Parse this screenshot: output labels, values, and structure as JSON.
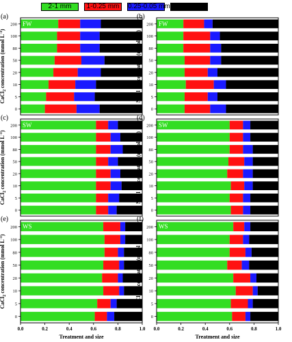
{
  "legend": [
    {
      "label": "2-1 mm",
      "color": "#33dd22"
    },
    {
      "label": "1-0.25 mm",
      "color": "#ff1111"
    },
    {
      "label": "0.25-0.05 mm",
      "color": "#1a1aff"
    },
    {
      "label": "<0.05 mm",
      "color": "#000000"
    }
  ],
  "chart_data": [
    {
      "type": "bar",
      "stacked": true,
      "orientation": "horizontal",
      "panel_label": "(a)",
      "tag": "FW",
      "ylabel_parts": [
        "CaCl",
        "2",
        " concentration (mmol L",
        "-1",
        ")"
      ],
      "xlabel": "",
      "xlim": [
        0,
        1.0
      ],
      "categories": [
        "0",
        "5",
        "10",
        "20",
        "50",
        "80",
        "100",
        "200"
      ],
      "series": [
        {
          "name": "2-1 mm",
          "values": [
            0.2,
            0.21,
            0.23,
            0.27,
            0.28,
            0.3,
            0.3,
            0.31
          ]
        },
        {
          "name": "1-0.25 mm",
          "values": [
            0.26,
            0.23,
            0.22,
            0.2,
            0.22,
            0.19,
            0.19,
            0.18
          ]
        },
        {
          "name": "0.25-0.05 mm",
          "values": [
            0.19,
            0.17,
            0.17,
            0.19,
            0.19,
            0.16,
            0.16,
            0.17
          ]
        },
        {
          "name": "<0.05 mm",
          "values": [
            0.35,
            0.39,
            0.38,
            0.34,
            0.31,
            0.35,
            0.35,
            0.34
          ]
        }
      ]
    },
    {
      "type": "bar",
      "stacked": true,
      "orientation": "horizontal",
      "panel_label": "(b)",
      "tag": "FW",
      "ylabel_parts": [
        "NaCl concentration (mmol L",
        "-1",
        ")"
      ],
      "xlabel": "",
      "xlim": [
        0,
        1.0
      ],
      "categories": [
        "0",
        "5",
        "10",
        "20",
        "50",
        "80",
        "100",
        "200"
      ],
      "series": [
        {
          "name": "2-1 mm",
          "values": [
            0.23,
            0.23,
            0.24,
            0.23,
            0.23,
            0.22,
            0.22,
            0.22
          ]
        },
        {
          "name": "1-0.25 mm",
          "values": [
            0.21,
            0.19,
            0.23,
            0.19,
            0.21,
            0.22,
            0.22,
            0.17
          ]
        },
        {
          "name": "0.25-0.05 mm",
          "values": [
            0.13,
            0.08,
            0.1,
            0.08,
            0.09,
            0.09,
            0.08,
            0.07
          ]
        },
        {
          "name": "<0.05 mm",
          "values": [
            0.43,
            0.5,
            0.43,
            0.5,
            0.47,
            0.47,
            0.48,
            0.54
          ]
        }
      ]
    },
    {
      "type": "bar",
      "stacked": true,
      "orientation": "horizontal",
      "panel_label": "(c)",
      "tag": "SW",
      "ylabel_parts": [
        "CaCl",
        "2",
        " concentration (mmol L",
        "-1",
        ")"
      ],
      "xlabel": "",
      "xlim": [
        0,
        1.0
      ],
      "categories": [
        "0",
        "5",
        "10",
        "20",
        "50",
        "80",
        "100",
        "200"
      ],
      "series": [
        {
          "name": "2-1 mm",
          "values": [
            0.62,
            0.62,
            0.62,
            0.62,
            0.62,
            0.62,
            0.62,
            0.62
          ]
        },
        {
          "name": "1-0.25 mm",
          "values": [
            0.1,
            0.1,
            0.12,
            0.12,
            0.1,
            0.12,
            0.12,
            0.1
          ]
        },
        {
          "name": "0.25-0.05 mm",
          "values": [
            0.07,
            0.09,
            0.09,
            0.08,
            0.08,
            0.1,
            0.08,
            0.08
          ]
        },
        {
          "name": "<0.05 mm",
          "values": [
            0.21,
            0.19,
            0.17,
            0.18,
            0.2,
            0.16,
            0.18,
            0.2
          ]
        }
      ]
    },
    {
      "type": "bar",
      "stacked": true,
      "orientation": "horizontal",
      "panel_label": "(d)",
      "tag": "SW",
      "ylabel_parts": [
        "NaCl concentration (mmol L",
        "-1",
        ")"
      ],
      "xlabel": "",
      "xlim": [
        0,
        1.0
      ],
      "categories": [
        "0",
        "5",
        "10",
        "20",
        "50",
        "80",
        "100",
        "200"
      ],
      "series": [
        {
          "name": "2-1 mm",
          "values": [
            0.61,
            0.6,
            0.61,
            0.58,
            0.59,
            0.6,
            0.6,
            0.6
          ]
        },
        {
          "name": "1-0.25 mm",
          "values": [
            0.1,
            0.11,
            0.11,
            0.13,
            0.13,
            0.11,
            0.11,
            0.11
          ]
        },
        {
          "name": "0.25-0.05 mm",
          "values": [
            0.06,
            0.06,
            0.07,
            0.08,
            0.07,
            0.08,
            0.06,
            0.06
          ]
        },
        {
          "name": "<0.05 mm",
          "values": [
            0.23,
            0.23,
            0.21,
            0.21,
            0.21,
            0.21,
            0.23,
            0.23
          ]
        }
      ]
    },
    {
      "type": "bar",
      "stacked": true,
      "orientation": "horizontal",
      "panel_label": "(e)",
      "tag": "WS",
      "ylabel_parts": [
        "CaCl",
        "2",
        " concentration (mmol L",
        "-1",
        ")"
      ],
      "xlabel": "Treatment and size",
      "xlim": [
        0,
        1.0
      ],
      "xticks": [
        "0.0",
        "0.2",
        "0.4",
        "0.6",
        "0.8",
        "1.0"
      ],
      "categories": [
        "0",
        "5",
        "10",
        "20",
        "50",
        "80",
        "100",
        "200"
      ],
      "series": [
        {
          "name": "2-1 mm",
          "values": [
            0.61,
            0.63,
            0.68,
            0.67,
            0.68,
            0.69,
            0.69,
            0.68
          ]
        },
        {
          "name": "1-0.25 mm",
          "values": [
            0.1,
            0.11,
            0.13,
            0.13,
            0.13,
            0.11,
            0.13,
            0.14
          ]
        },
        {
          "name": "0.25-0.05 mm",
          "values": [
            0.06,
            0.05,
            0.04,
            0.04,
            0.04,
            0.05,
            0.04,
            0.04
          ]
        },
        {
          "name": "<0.05 mm",
          "values": [
            0.23,
            0.21,
            0.15,
            0.16,
            0.15,
            0.15,
            0.14,
            0.14
          ]
        }
      ]
    },
    {
      "type": "bar",
      "stacked": true,
      "orientation": "horizontal",
      "panel_label": "(f)",
      "tag": "WS",
      "ylabel_parts": [
        "NaCl concentration (mmol L",
        "-1",
        ")"
      ],
      "xlabel": "Treatment and size",
      "xlim": [
        0,
        1.0
      ],
      "xticks": [
        "0.0",
        "0.2",
        "0.4",
        "0.6",
        "0.8",
        "1.0"
      ],
      "categories": [
        "0",
        "5",
        "10",
        "20",
        "50",
        "80",
        "100",
        "200"
      ],
      "series": [
        {
          "name": "2-1 mm",
          "values": [
            0.62,
            0.61,
            0.65,
            0.63,
            0.58,
            0.6,
            0.6,
            0.63
          ]
        },
        {
          "name": "1-0.25 mm",
          "values": [
            0.11,
            0.14,
            0.14,
            0.14,
            0.12,
            0.13,
            0.11,
            0.09
          ]
        },
        {
          "name": "0.25-0.05 mm",
          "values": [
            0.04,
            0.04,
            0.04,
            0.05,
            0.06,
            0.05,
            0.05,
            0.05
          ]
        },
        {
          "name": "<0.05 mm",
          "values": [
            0.23,
            0.21,
            0.17,
            0.18,
            0.24,
            0.22,
            0.24,
            0.23
          ]
        }
      ]
    }
  ]
}
